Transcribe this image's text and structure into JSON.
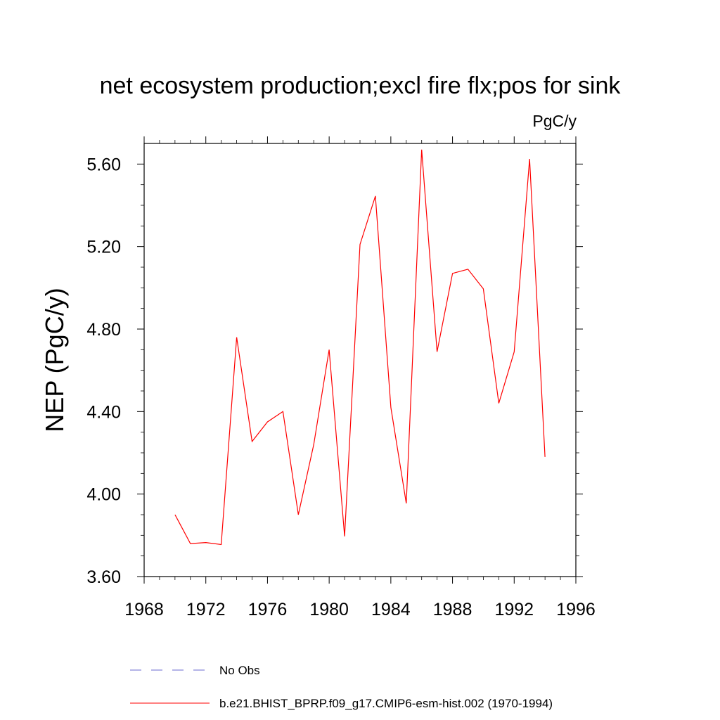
{
  "chart_data": {
    "type": "line",
    "title": "net ecosystem production;excl fire flx;pos for sink",
    "units_label": "PgC/y",
    "ylabel": "NEP  (PgC/y)",
    "xlabel": "",
    "xlim": [
      1968,
      1996
    ],
    "ylim": [
      3.6,
      5.7
    ],
    "xticks": [
      "1968",
      "1972",
      "1976",
      "1980",
      "1984",
      "1988",
      "1992",
      "1996"
    ],
    "yticks": [
      "3.60",
      "4.00",
      "4.40",
      "4.80",
      "5.20",
      "5.60"
    ],
    "legend_position": "bottom",
    "series": [
      {
        "name": "No Obs",
        "color": "#6a6ad0",
        "style": "dashed",
        "x": [],
        "y": []
      },
      {
        "name": "b.e21.BHIST_BPRP.f09_g17.CMIP6-esm-hist.002 (1970-1994)",
        "color": "#ff0000",
        "style": "solid",
        "x": [
          1970,
          1971,
          1972,
          1973,
          1974,
          1975,
          1976,
          1977,
          1978,
          1979,
          1980,
          1981,
          1982,
          1983,
          1984,
          1985,
          1986,
          1987,
          1988,
          1989,
          1990,
          1991,
          1992,
          1993,
          1994
        ],
        "y": [
          3.9,
          3.76,
          3.765,
          3.755,
          4.76,
          4.255,
          4.35,
          4.4,
          3.9,
          4.24,
          4.7,
          3.795,
          5.21,
          5.445,
          4.42,
          3.955,
          5.67,
          4.69,
          5.07,
          5.09,
          4.995,
          4.44,
          4.69,
          5.625,
          4.18
        ]
      }
    ]
  }
}
